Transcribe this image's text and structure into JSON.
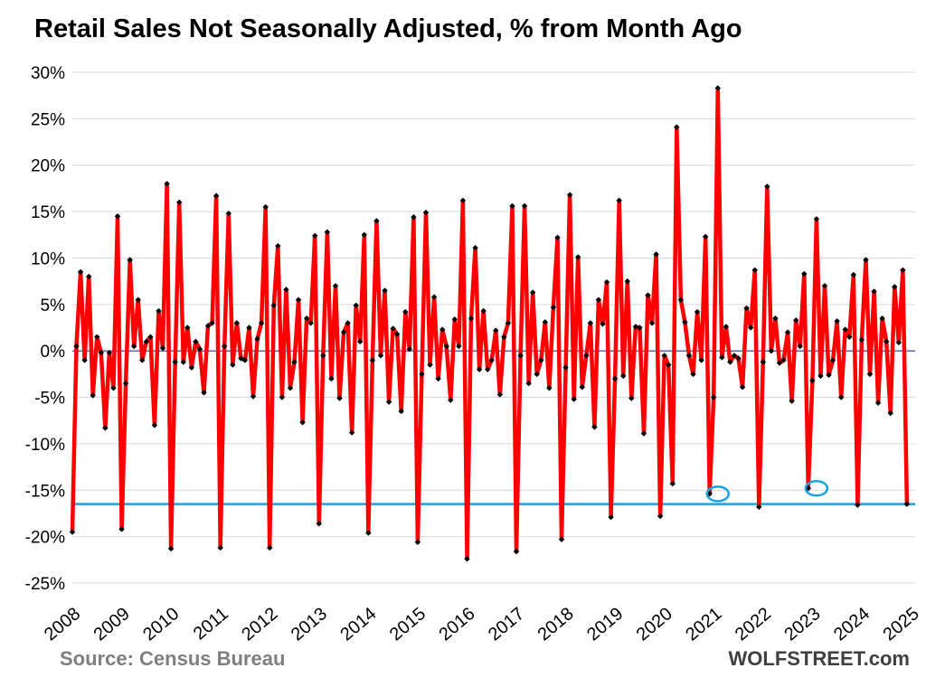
{
  "chart_data": {
    "type": "line",
    "title": "Retail Sales Not Seasonally Adjusted, % from Month Ago",
    "source": "Source: Census Bureau",
    "brand": "WOLFSTREET.com",
    "xlabel": "",
    "ylabel": "",
    "ylim": [
      -25,
      30
    ],
    "y_ticks": [
      30,
      25,
      20,
      15,
      10,
      5,
      0,
      -5,
      -10,
      -15,
      -20,
      -25
    ],
    "y_tick_labels": [
      "30%",
      "25%",
      "20%",
      "15%",
      "10%",
      "5%",
      "0%",
      "-5%",
      "-10%",
      "-15%",
      "-20%",
      "-25%"
    ],
    "x_tick_labels": [
      "2008",
      "2009",
      "2010",
      "2011",
      "2012",
      "2013",
      "2014",
      "2015",
      "2016",
      "2017",
      "2018",
      "2019",
      "2020",
      "2021",
      "2022",
      "2023",
      "2024",
      "2025"
    ],
    "x_range": [
      2008.0,
      2025.083
    ],
    "grid": true,
    "colors": {
      "line": "#ff0000",
      "marker": "#000000",
      "reference": "#1aa3e0",
      "highlight": "#1aa3e0",
      "grid": "#d9d9d9",
      "zero_line": "#1f3a93"
    },
    "reference_line": {
      "value": -16.5,
      "label": ""
    },
    "highlighted_points": [
      {
        "x": 2021.083,
        "y": -15.4
      },
      {
        "x": 2023.083,
        "y": -14.8
      }
    ],
    "series": [
      {
        "name": "Retail Sales NSA % from month ago",
        "values": [
          -19.5,
          0.5,
          8.5,
          -1.0,
          8.0,
          -4.8,
          1.5,
          -0.2,
          -8.3,
          -0.2,
          -4.0,
          14.5,
          -19.2,
          -3.5,
          9.8,
          0.5,
          5.5,
          -1.0,
          1.0,
          1.5,
          -8.0,
          4.3,
          0.3,
          18.0,
          -21.3,
          -1.2,
          16.0,
          -1.2,
          2.5,
          -1.8,
          1.0,
          0.2,
          -4.5,
          2.7,
          3.0,
          16.7,
          -21.2,
          0.5,
          14.8,
          -1.5,
          3.0,
          -0.8,
          -1.0,
          2.5,
          -4.9,
          1.3,
          3.0,
          15.5,
          -21.2,
          4.9,
          11.3,
          -5.0,
          6.6,
          -4.0,
          -1.2,
          5.5,
          -7.7,
          3.5,
          3.0,
          12.4,
          -18.6,
          -0.5,
          12.8,
          -3.0,
          7.0,
          -5.1,
          2.0,
          3.0,
          -8.8,
          4.9,
          1.0,
          12.5,
          -19.6,
          -1.0,
          14.0,
          -0.5,
          6.5,
          -5.5,
          2.4,
          1.8,
          -6.5,
          4.2,
          0.2,
          14.4,
          -20.6,
          -2.5,
          14.9,
          -1.5,
          5.8,
          -3.0,
          2.3,
          0.5,
          -5.3,
          3.4,
          0.5,
          16.2,
          -22.4,
          3.5,
          11.1,
          -2.0,
          4.3,
          -2.0,
          -1.0,
          2.2,
          -4.7,
          1.5,
          3.0,
          15.6,
          -21.6,
          -0.5,
          15.6,
          -3.5,
          6.3,
          -2.5,
          -1.0,
          3.1,
          -4.0,
          4.7,
          12.2,
          -20.3,
          -1.8,
          16.8,
          -5.2,
          10.1,
          -3.9,
          -0.5,
          3.0,
          -8.2,
          5.5,
          2.9,
          7.4,
          -17.9,
          -3.0,
          16.2,
          -2.7,
          7.5,
          -5.1,
          2.6,
          2.5,
          -8.9,
          6.0,
          3.0,
          10.4,
          -17.8,
          -0.5,
          -1.5,
          -14.3,
          24.1,
          5.5,
          3.1,
          -0.5,
          -2.5,
          4.2,
          -1.0,
          12.3,
          -15.4,
          -5.0,
          28.3,
          -0.7,
          2.6,
          -1.2,
          -0.5,
          -0.8,
          -3.9,
          4.6,
          2.5,
          8.7,
          -16.8,
          -1.2,
          17.7,
          0.0,
          3.5,
          -1.3,
          -1.0,
          2.0,
          -5.4,
          3.3,
          0.5,
          8.3,
          -14.8,
          -3.2,
          14.2,
          -2.7,
          7.0,
          -2.6,
          -1.0,
          3.2,
          -5.0,
          2.3,
          1.5,
          8.2,
          -16.6,
          1.2,
          9.8,
          -2.5,
          6.4,
          -5.6,
          3.5,
          1.0,
          -6.7,
          6.9,
          0.9,
          8.7,
          -16.5
        ]
      }
    ]
  }
}
